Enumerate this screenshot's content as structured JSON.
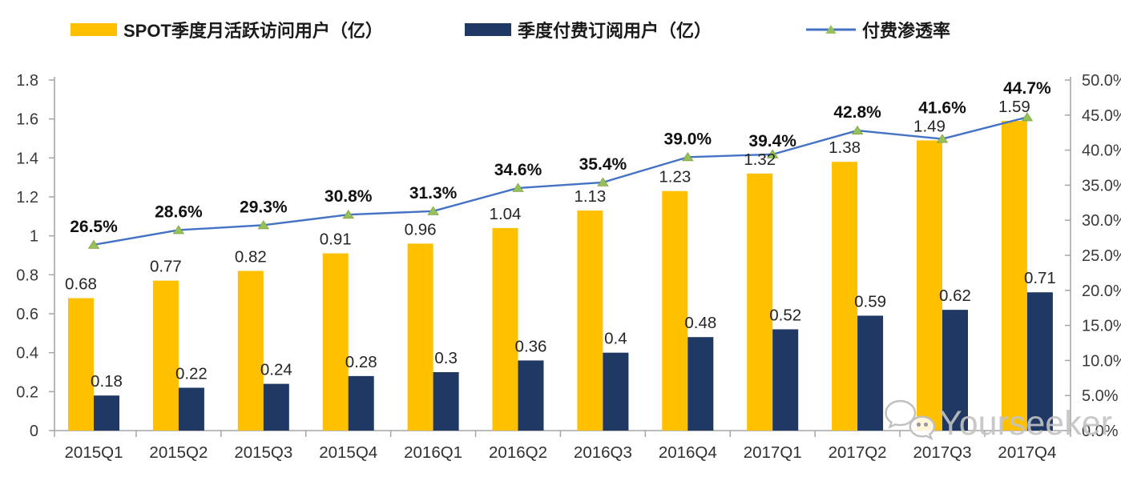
{
  "legend": {
    "items": [
      {
        "label": "SPOT季度月活跃访问用户（亿）",
        "color": "#FFC000",
        "type": "bar"
      },
      {
        "label": "季度付费订阅用户（亿）",
        "color": "#1F3864",
        "type": "bar"
      },
      {
        "label": "付费渗透率",
        "color": "#4472C4",
        "marker_color": "#97BF5A",
        "type": "line"
      }
    ]
  },
  "watermark": {
    "text": "Yourseeker"
  },
  "chart_data": {
    "type": "bar",
    "subtype": "combo-bar-line",
    "categories": [
      "2015Q1",
      "2015Q2",
      "2015Q3",
      "2015Q4",
      "2016Q1",
      "2016Q2",
      "2016Q3",
      "2016Q4",
      "2017Q1",
      "2017Q2",
      "2017Q3",
      "2017Q4"
    ],
    "series": [
      {
        "name": "SPOT季度月活跃访问用户（亿）",
        "type": "bar",
        "axis": "left",
        "color": "#FFC000",
        "values": [
          0.68,
          0.77,
          0.82,
          0.91,
          0.96,
          1.04,
          1.13,
          1.23,
          1.32,
          1.38,
          1.49,
          1.59
        ],
        "display_labels": [
          "0.68",
          "0.77",
          "0.82",
          "0.91",
          "0.96",
          "1.04",
          "1.13",
          "1.23",
          "1.32",
          "1.38",
          "1.49",
          "1.59"
        ]
      },
      {
        "name": "季度付费订阅用户（亿）",
        "type": "bar",
        "axis": "left",
        "color": "#1F3864",
        "values": [
          0.18,
          0.22,
          0.24,
          0.28,
          0.3,
          0.36,
          0.4,
          0.48,
          0.52,
          0.59,
          0.62,
          0.71
        ],
        "display_labels": [
          "0.18",
          "0.22",
          "0.24",
          "0.28",
          "0.3",
          "0.36",
          "0.4",
          "0.48",
          "0.52",
          "0.59",
          "0.62",
          "0.71"
        ]
      },
      {
        "name": "付费渗透率",
        "type": "line",
        "axis": "right",
        "color": "#4472C4",
        "marker": "triangle",
        "marker_color": "#97BF5A",
        "values": [
          26.5,
          28.6,
          29.3,
          30.8,
          31.3,
          34.6,
          35.4,
          39.0,
          39.4,
          42.8,
          41.6,
          44.7
        ],
        "display_labels": [
          "26.5%",
          "28.6%",
          "29.3%",
          "30.8%",
          "31.3%",
          "34.6%",
          "35.4%",
          "39.0%",
          "39.4%",
          "42.8%",
          "41.6%",
          "44.7%"
        ]
      }
    ],
    "left_axis": {
      "min": 0,
      "max": 1.8,
      "step": 0.2,
      "tick_labels": [
        "1.8",
        "1.6",
        "1.4",
        "1.2",
        "1",
        "0.8",
        "0.6",
        "0.4",
        "0.2",
        "0"
      ]
    },
    "right_axis": {
      "min": 0,
      "max": 50,
      "step": 5,
      "tick_labels": [
        "50.0%",
        "45.0%",
        "40.0%",
        "35.0%",
        "30.0%",
        "25.0%",
        "20.0%",
        "15.0%",
        "10.0%",
        "5.0%",
        "0.0%"
      ]
    },
    "grid": false,
    "legend_position": "top",
    "axis_color": "#A6A6A6",
    "label_color": "#262626"
  }
}
